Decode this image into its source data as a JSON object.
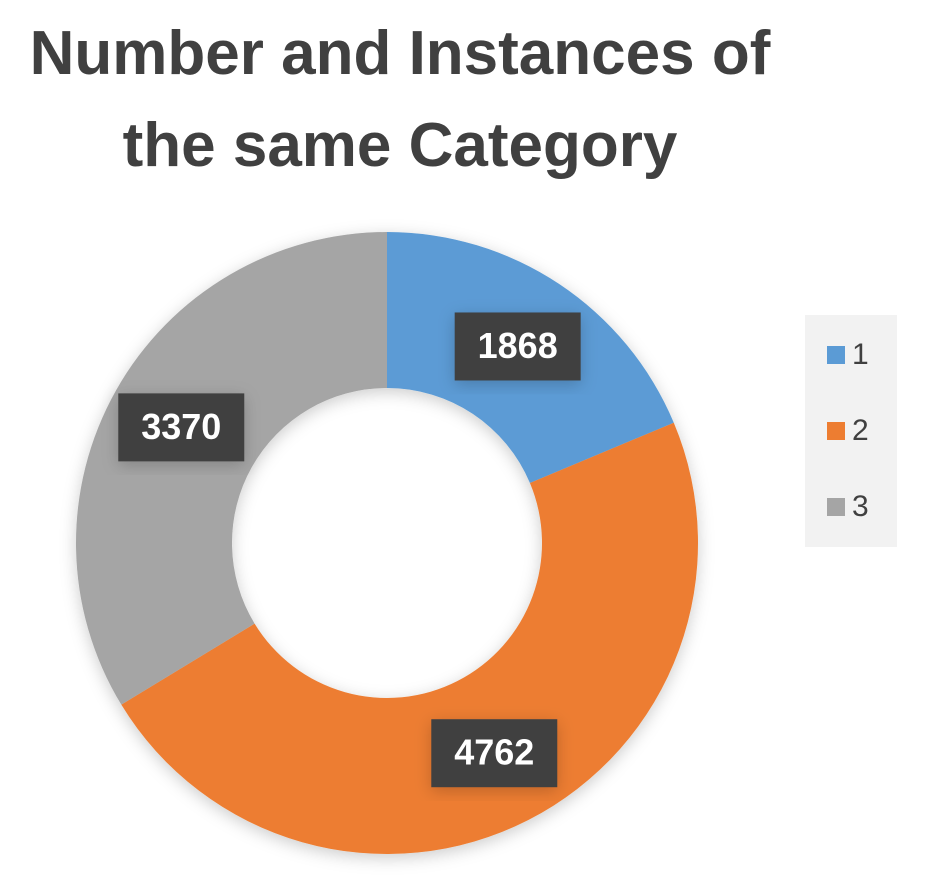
{
  "chart_data": {
    "type": "donut",
    "title": "Number and Instances of the same Category",
    "categories": [
      "1",
      "2",
      "3"
    ],
    "values": [
      1868,
      4762,
      3370
    ],
    "colors": [
      "#5b9bd5",
      "#ed7d31",
      "#a5a5a5"
    ],
    "legend": "right"
  }
}
